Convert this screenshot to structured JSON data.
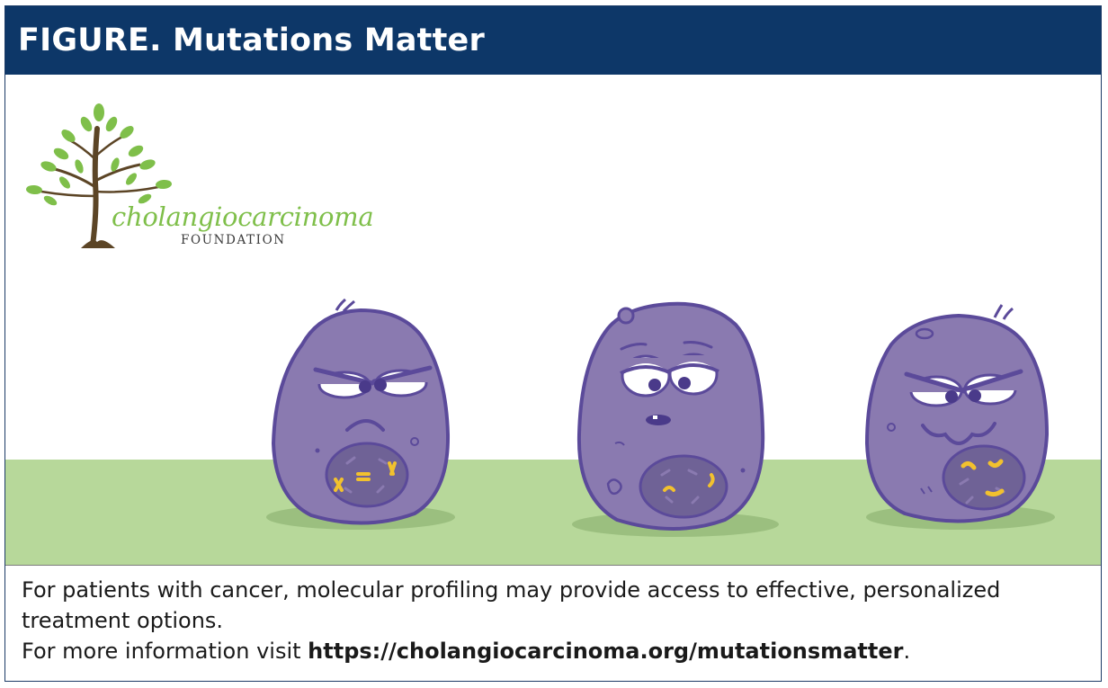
{
  "header": {
    "title": "FIGURE. Mutations Matter"
  },
  "logo": {
    "wordmark": "cholangiocarcinoma",
    "subtitle": "FOUNDATION",
    "icon": "tree-icon"
  },
  "illustration": {
    "characters": [
      "angry-cell",
      "tired-cell",
      "scheming-cell"
    ],
    "colors": {
      "cell_fill": "#8a7ab0",
      "cell_outline": "#5b4a9a",
      "ground": "#b7d89a",
      "mutation_marks": "#f2c12e",
      "leaf_green": "#7fbf4a",
      "trunk": "#5c4526"
    }
  },
  "caption": {
    "line1": "For patients with cancer, molecular profiling may provide access to effective, personalized treatment options.",
    "line2_prefix": "For more information visit ",
    "url": "https://cholangiocarcinoma.org/mutationsmatter",
    "line2_suffix": "."
  },
  "colors": {
    "header_bg": "#0d3768",
    "header_text": "#ffffff",
    "border": "#1b3a66"
  }
}
